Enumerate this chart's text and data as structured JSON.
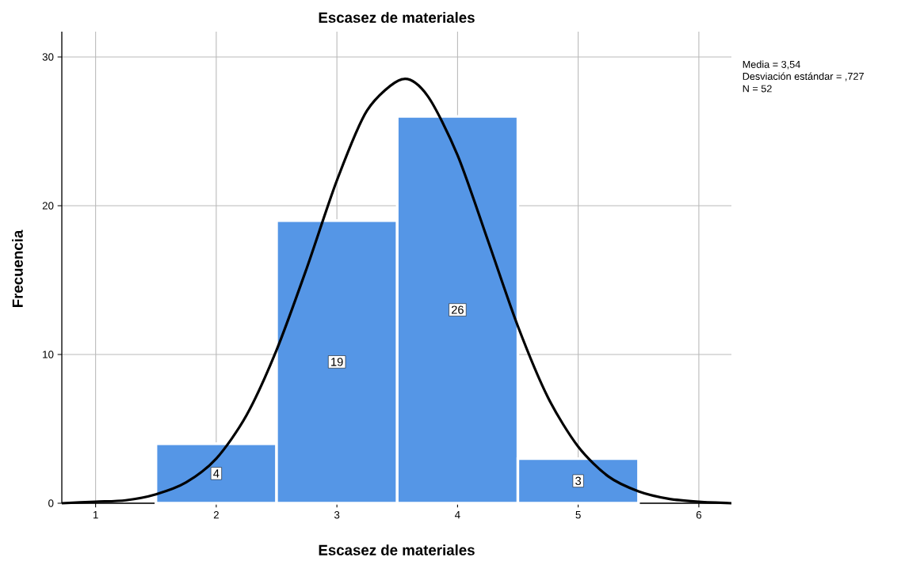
{
  "chart_data": {
    "type": "histogram",
    "title": "Escasez de materiales",
    "xlabel": "Escasez de materiales",
    "ylabel": "Frecuencia",
    "bins": [
      1.5,
      2.5,
      3.5,
      4.5,
      5.5
    ],
    "values": [
      4,
      19,
      26,
      3
    ],
    "color": "#5596e6",
    "value_labels": [
      "4",
      "19",
      "26",
      "3"
    ],
    "series": [
      {
        "type": "line",
        "color": "#000000",
        "x": [
          0.72,
          1.0,
          1.25,
          1.5,
          1.75,
          2.0,
          2.25,
          2.5,
          2.75,
          3.0,
          3.25,
          3.54,
          3.75,
          4.0,
          4.25,
          4.5,
          4.75,
          5.0,
          5.25,
          5.5,
          5.75,
          6.0,
          6.27
        ],
        "values": [
          0.0,
          0.1,
          0.2,
          0.6,
          1.4,
          3.0,
          5.9,
          10.3,
          15.8,
          21.7,
          26.4,
          28.5,
          27.4,
          23.4,
          17.7,
          11.9,
          7.1,
          3.8,
          1.8,
          0.8,
          0.3,
          0.1,
          0.0
        ]
      }
    ],
    "xlim": [
      0.72,
      6.27
    ],
    "ylim": [
      0,
      31.7
    ],
    "xticks": [
      1,
      2,
      3,
      4,
      5,
      6
    ],
    "yticks": [
      0,
      10,
      20,
      30
    ],
    "grid": true,
    "annotations": [
      "Media = 3,54",
      "Desviación estándar = ,727",
      "N = 52"
    ]
  }
}
